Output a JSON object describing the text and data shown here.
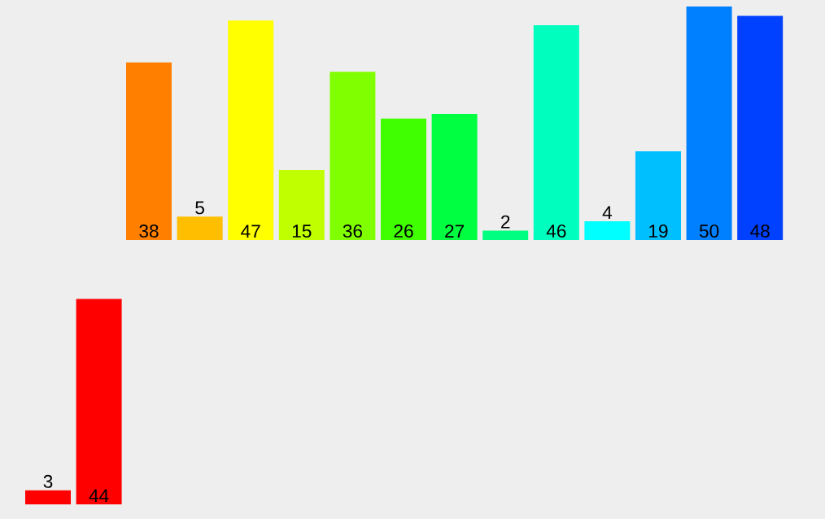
{
  "chart_data": [
    {
      "type": "bar",
      "categories": [
        null,
        null,
        null,
        null,
        null,
        null,
        null,
        null,
        null,
        null,
        null,
        null,
        null
      ],
      "values": [
        38,
        5,
        47,
        15,
        36,
        26,
        27,
        2,
        46,
        4,
        19,
        50,
        48
      ],
      "colors": [
        "#ff8000",
        "#ffbf00",
        "#ffff00",
        "#bfff00",
        "#80ff00",
        "#40ff00",
        "#00ff40",
        "#00ff80",
        "#00ffbf",
        "#00ffff",
        "#00bfff",
        "#0080ff",
        "#0040ff"
      ],
      "data_labels": true
    },
    {
      "type": "bar",
      "categories": [
        null,
        null
      ],
      "values": [
        3,
        44
      ],
      "colors": [
        "#ff0000",
        "#ff0000"
      ],
      "data_labels": true
    }
  ]
}
